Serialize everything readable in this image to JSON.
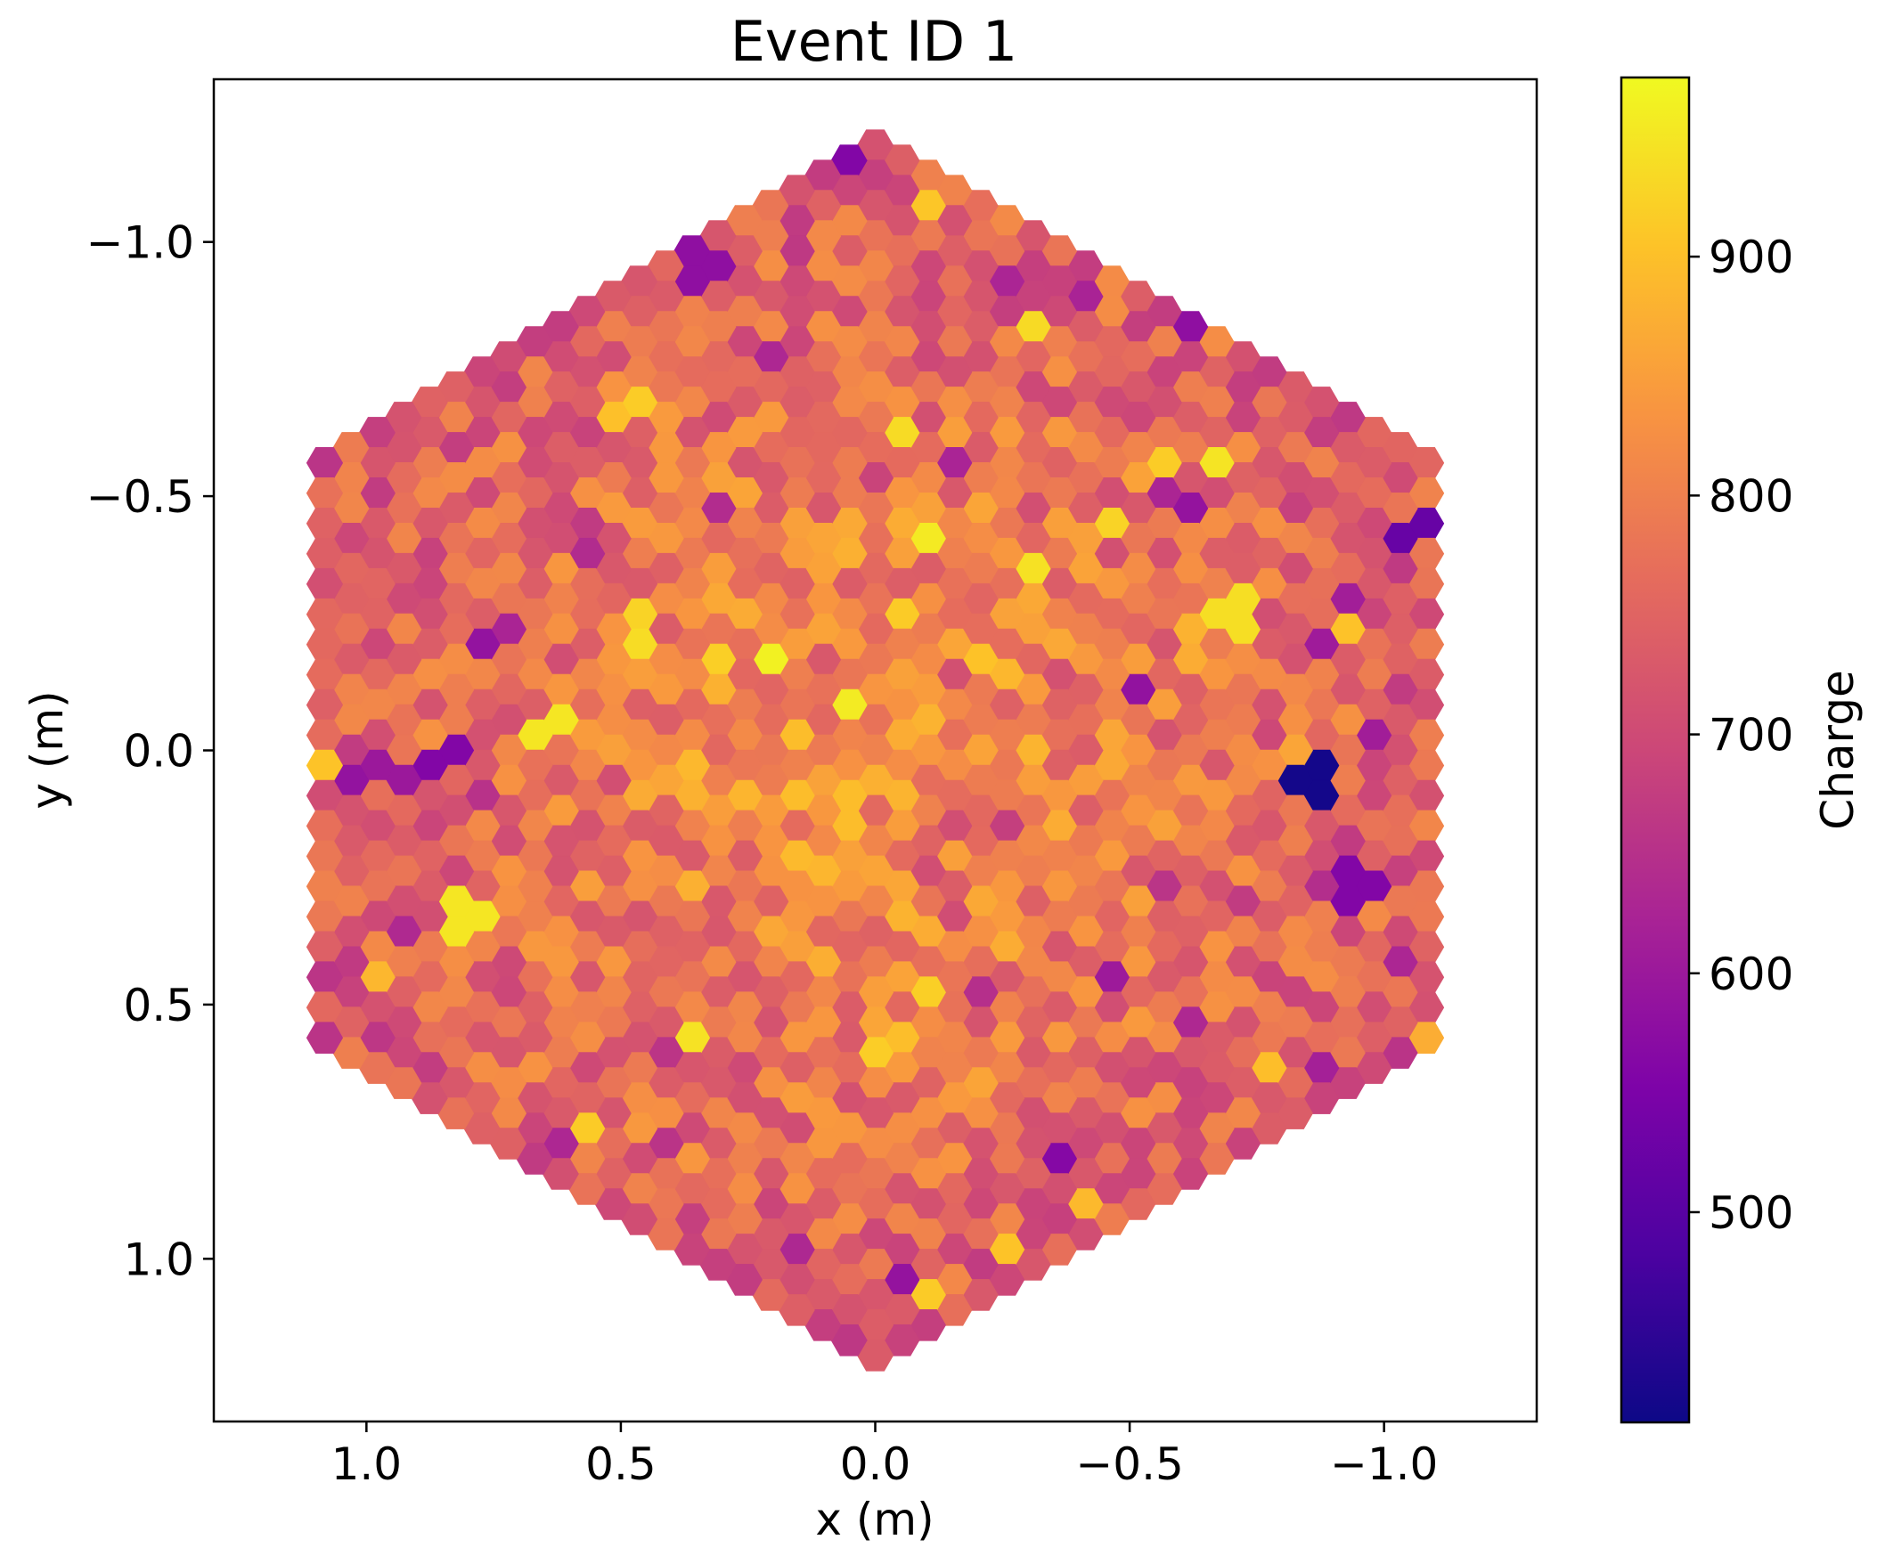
{
  "chart_data": {
    "type": "heatmap",
    "title": "Event ID 1",
    "xlabel": "x  (m)",
    "ylabel": "y  (m)",
    "xlim": [
      1.3,
      -1.3
    ],
    "ylim": [
      1.32,
      -1.32
    ],
    "x_inverted": true,
    "y_inverted": true,
    "xticks": [
      1.0,
      0.5,
      0.0,
      -0.5,
      -1.0
    ],
    "xtick_labels": [
      "1.0",
      "0.5",
      "0.0",
      "−0.5",
      "−1.0"
    ],
    "yticks": [
      -1.0,
      -0.5,
      0.0,
      0.5,
      1.0
    ],
    "ytick_labels": [
      "−1.0",
      "−0.5",
      "0.0",
      "0.5",
      "1.0"
    ],
    "grid": false,
    "colormap": "plasma",
    "colorbar": {
      "label": "Charge",
      "range": [
        412,
        975
      ],
      "ticks": [
        500,
        600,
        700,
        800,
        900
      ],
      "tick_labels": [
        "500",
        "600",
        "700",
        "800",
        "900"
      ]
    },
    "camera": {
      "shape": "hexagon",
      "pixel_shape": "hexagon",
      "pixel_pitch": 0.0595,
      "camera_half_width": 1.1,
      "camera_half_height": 1.2,
      "mean_charge": 770,
      "center_charge": 840,
      "edge_charge": 730,
      "min_charge": 420,
      "max_charge": 975
    },
    "highlights": [
      {
        "x": -0.85,
        "y": 0.06,
        "charge": 420
      },
      {
        "x": -1.05,
        "y": -0.42,
        "charge": 520
      },
      {
        "x": 0.85,
        "y": 0.02,
        "charge": 560
      },
      {
        "x": 0.95,
        "y": 0.04,
        "charge": 600
      },
      {
        "x": -0.96,
        "y": 0.27,
        "charge": 560
      },
      {
        "x": -0.62,
        "y": -0.86,
        "charge": 580
      },
      {
        "x": 0.33,
        "y": -0.95,
        "charge": 580
      },
      {
        "x": 0.19,
        "y": -0.17,
        "charge": 965
      },
      {
        "x": 0.65,
        "y": -0.04,
        "charge": 950
      },
      {
        "x": 0.8,
        "y": 0.33,
        "charge": 950
      },
      {
        "x": -0.3,
        "y": -0.84,
        "charge": 935
      },
      {
        "x": -0.7,
        "y": -0.27,
        "charge": 940
      },
      {
        "x": 0.35,
        "y": 0.59,
        "charge": 945
      },
      {
        "x": -0.12,
        "y": 0.46,
        "charge": 920
      },
      {
        "x": 0.45,
        "y": -0.27,
        "charge": 925
      },
      {
        "x": 0.57,
        "y": 0.72,
        "charge": 915
      },
      {
        "x": -0.1,
        "y": 1.08,
        "charge": 915
      },
      {
        "x": -0.25,
        "y": 0.96,
        "charge": 905
      },
      {
        "x": 0.52,
        "y": -0.65,
        "charge": 900
      },
      {
        "x": 0.05,
        "y": 0.12,
        "charge": 895
      }
    ]
  }
}
